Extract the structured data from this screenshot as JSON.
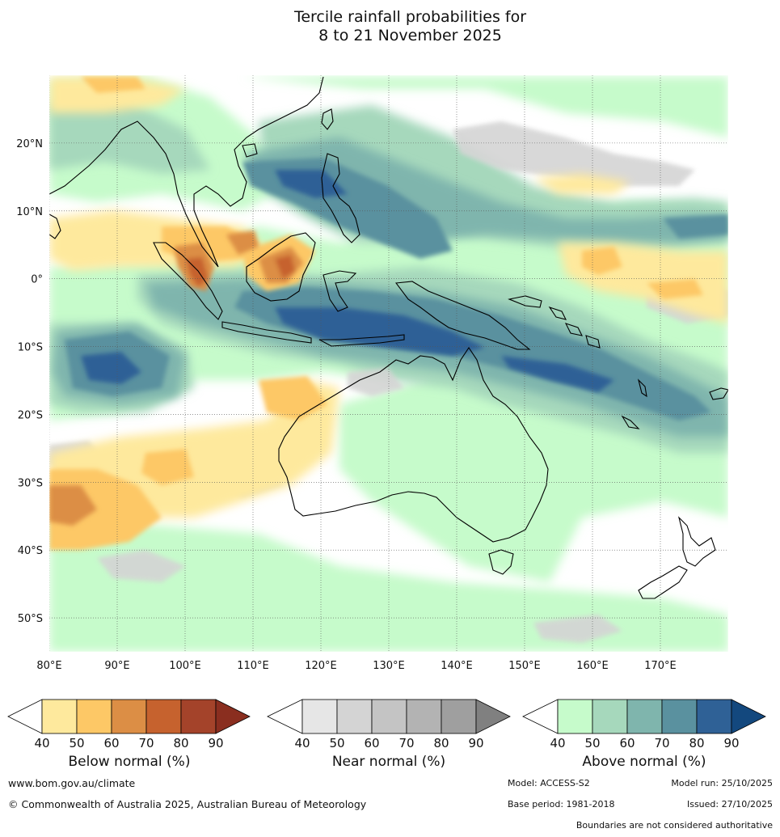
{
  "title": {
    "line1": "Tercile rainfall probabilities for",
    "line2": "8 to 21 November 2025"
  },
  "map": {
    "lon_labels": [
      "80°E",
      "90°E",
      "100°E",
      "110°E",
      "120°E",
      "130°E",
      "140°E",
      "150°E",
      "160°E",
      "170°E"
    ],
    "lat_labels": [
      "20°N",
      "10°N",
      "0°",
      "10°S",
      "20°S",
      "30°S",
      "40°S",
      "50°S"
    ],
    "extent": {
      "lon_min": 80,
      "lon_max": 180,
      "lat_min": -55,
      "lat_max": 30
    }
  },
  "colorbars": [
    {
      "name": "below-normal",
      "label": "Below normal (%)",
      "ticks": [
        "40",
        "50",
        "60",
        "70",
        "80",
        "90"
      ],
      "colors": [
        "#ffffff",
        "#fee99d",
        "#fdc866",
        "#dc8e45",
        "#c6622e",
        "#a4432a",
        "#8a2e1f"
      ]
    },
    {
      "name": "near-normal",
      "label": "Near normal (%)",
      "ticks": [
        "40",
        "50",
        "60",
        "70",
        "80",
        "90"
      ],
      "colors": [
        "#ffffff",
        "#e6e6e6",
        "#d4d4d4",
        "#c4c4c4",
        "#b3b3b3",
        "#9f9f9f",
        "#808080"
      ]
    },
    {
      "name": "above-normal",
      "label": "Above normal (%)",
      "ticks": [
        "40",
        "50",
        "60",
        "70",
        "80",
        "90"
      ],
      "colors": [
        "#ffffff",
        "#c6fbcb",
        "#a6d8bc",
        "#7fb5ad",
        "#5a919f",
        "#2f6196",
        "#13487e"
      ]
    }
  ],
  "footer": {
    "website": "www.bom.gov.au/climate",
    "copyright": "© Commonwealth of Australia 2025, Australian Bureau of Meteorology",
    "model": "Model: ACCESS-S2",
    "model_run": "Model run: 25/10/2025",
    "base_period": "Base period: 1981-2018",
    "issued": "Issued: 27/10/2025",
    "disclaimer": "Boundaries are not considered authoritative"
  }
}
